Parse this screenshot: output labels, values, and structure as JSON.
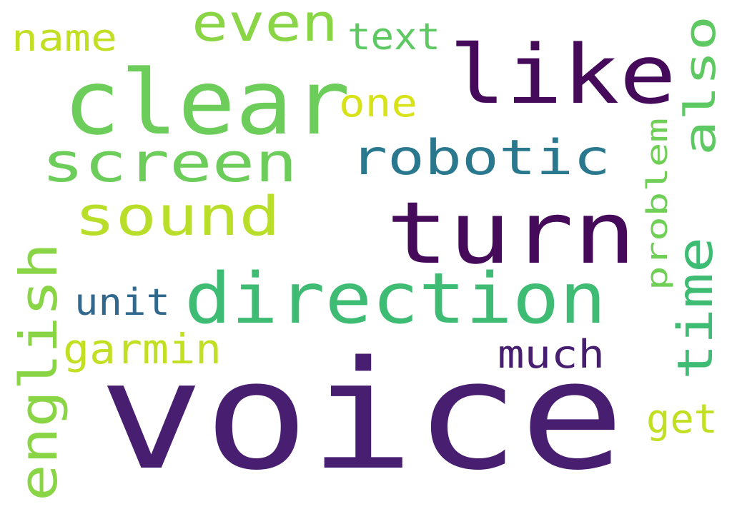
{
  "words": [
    {
      "text": "voice",
      "color": "#481f70",
      "vertical": false
    },
    {
      "text": "turn",
      "color": "#450b5a",
      "vertical": false
    },
    {
      "text": "clear",
      "color": "#6ccd5a",
      "vertical": false
    },
    {
      "text": "direction",
      "color": "#3fbc73",
      "vertical": false
    },
    {
      "text": "like",
      "color": "#450b5a",
      "vertical": false
    },
    {
      "text": "english",
      "color": "#8ad546",
      "vertical": true
    },
    {
      "text": "screen",
      "color": "#6ccd5a",
      "vertical": false
    },
    {
      "text": "sound",
      "color": "#b8de29",
      "vertical": false
    },
    {
      "text": "robotic",
      "color": "#2a788e",
      "vertical": false
    },
    {
      "text": "time",
      "color": "#3fbc73",
      "vertical": true
    },
    {
      "text": "also",
      "color": "#5ec962",
      "vertical": true
    },
    {
      "text": "even",
      "color": "#8ad546",
      "vertical": false
    },
    {
      "text": "much",
      "color": "#481f70",
      "vertical": false
    },
    {
      "text": "garmin",
      "color": "#c2df23",
      "vertical": false
    },
    {
      "text": "problem",
      "color": "#70cf57",
      "vertical": true
    },
    {
      "text": "unit",
      "color": "#31688e",
      "vertical": false
    },
    {
      "text": "name",
      "color": "#c2df23",
      "vertical": false
    },
    {
      "text": "one",
      "color": "#d8e219",
      "vertical": false
    },
    {
      "text": "text",
      "color": "#5ec962",
      "vertical": false
    },
    {
      "text": "get",
      "color": "#c2df23",
      "vertical": false
    }
  ]
}
